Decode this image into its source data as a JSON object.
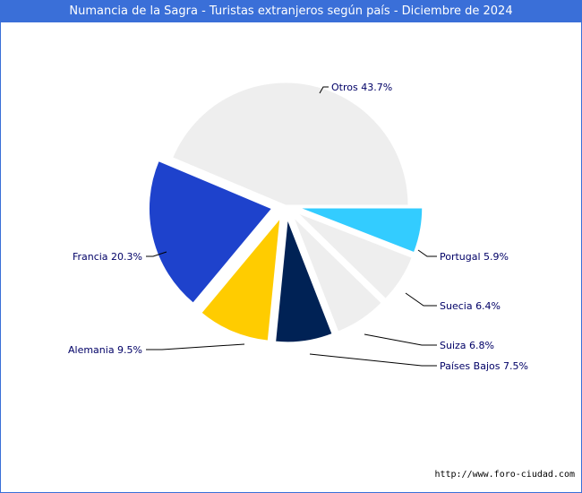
{
  "title": "Numancia de la Sagra - Turistas extranjeros según país - Diciembre de 2024",
  "footer": "http://www.foro-ciudad.com",
  "chart_data": {
    "type": "pie",
    "title": "Numancia de la Sagra - Turistas extranjeros según país - Diciembre de 2024",
    "slices": [
      {
        "label": "Otros 43.7%",
        "name": "Otros",
        "value": 43.7,
        "color": "#eeeeee"
      },
      {
        "label": "Portugal 5.9%",
        "name": "Portugal",
        "value": 5.9,
        "color": "#33ccff"
      },
      {
        "label": "Suecia 6.4%",
        "name": "Suecia",
        "value": 6.4,
        "color": "#eeeeee"
      },
      {
        "label": "Suiza 6.8%",
        "name": "Suiza",
        "value": 6.8,
        "color": "#eeeeee"
      },
      {
        "label": "Países Bajos 7.5%",
        "name": "Países Bajos",
        "value": 7.5,
        "color": "#002255"
      },
      {
        "label": "Alemania 9.5%",
        "name": "Alemania",
        "value": 9.5,
        "color": "#ffcc00"
      },
      {
        "label": "Francia 20.3%",
        "name": "Francia",
        "value": 20.3,
        "color": "#1e42cc"
      }
    ],
    "label_color": "#000066"
  }
}
